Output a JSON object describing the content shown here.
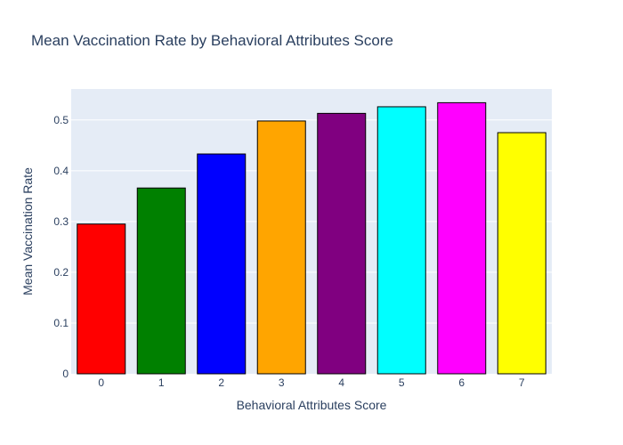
{
  "chart_data": {
    "type": "bar",
    "title": "Mean Vaccination Rate by Behavioral Attributes Score",
    "xlabel": "Behavioral Attributes Score",
    "ylabel": "Mean Vaccination Rate",
    "categories": [
      "0",
      "1",
      "2",
      "3",
      "4",
      "5",
      "6",
      "7"
    ],
    "values": [
      0.295,
      0.366,
      0.433,
      0.498,
      0.513,
      0.526,
      0.534,
      0.475
    ],
    "colors": [
      "#ff0000",
      "#008000",
      "#0000ff",
      "#ffa500",
      "#800080",
      "#00ffff",
      "#ff00ff",
      "#ffff00"
    ],
    "ylim": [
      0,
      0.561
    ],
    "yticks": [
      0,
      0.1,
      0.2,
      0.3,
      0.4,
      0.5
    ],
    "ytick_labels": [
      "0",
      "0.1",
      "0.2",
      "0.3",
      "0.4",
      "0.5"
    ],
    "grid": true,
    "plot_bgcolor": "#e5ecf6"
  }
}
